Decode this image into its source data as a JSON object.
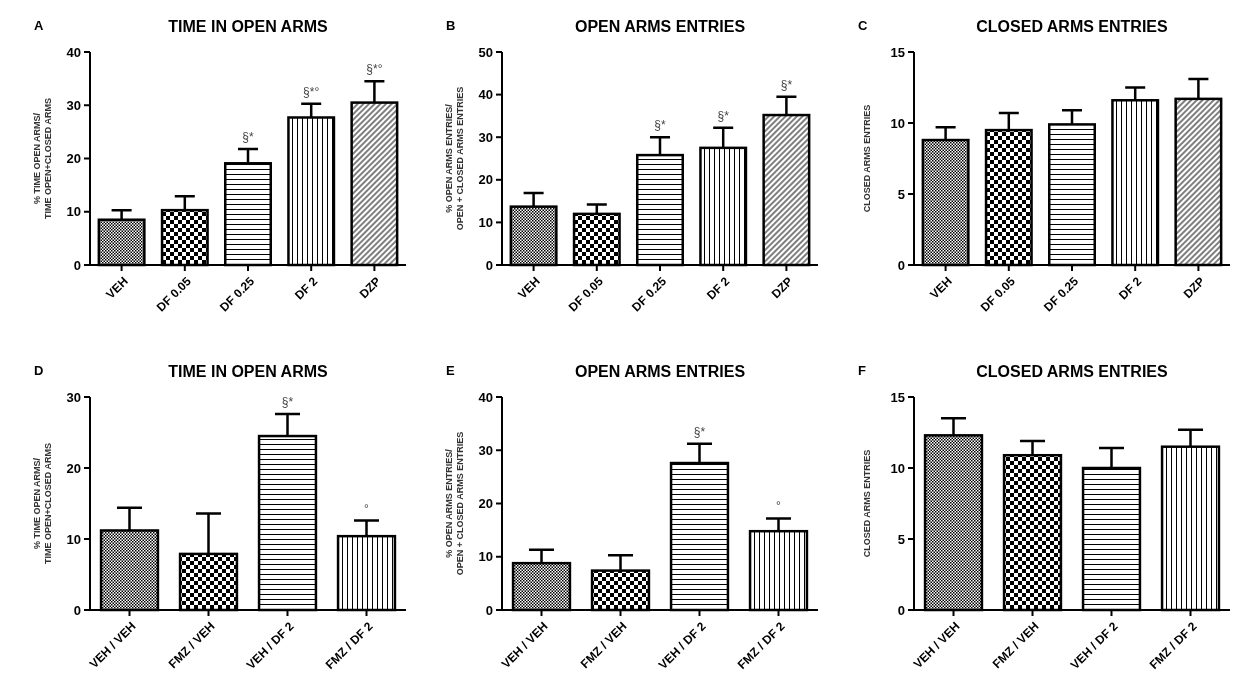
{
  "chart_data": [
    {
      "type": "bar",
      "title": "TIME IN OPEN ARMS",
      "ylabel": "% TIME OPEN ARMS/\nTIME OPEN+CLOSED ARMS",
      "categories": [
        "VEH",
        "DF 0.05",
        "DF 0.25",
        "DF 2",
        "DZP"
      ],
      "values": [
        8.5,
        10.3,
        19.1,
        27.7,
        30.5
      ],
      "errors": [
        [
          8.5,
          10.3
        ],
        [
          10.3,
          12.9
        ],
        [
          19.1,
          21.8
        ],
        [
          27.7,
          30.3
        ],
        [
          30.5,
          34.5
        ]
      ],
      "color": "#000000",
      "ylim": [
        0,
        40
      ],
      "yticks": [
        0,
        10,
        20,
        30,
        40
      ],
      "grid": false,
      "annotations": [
        "A",
        {
          "text": "§*",
          "x": "DF 0.25",
          "y": 21.8
        },
        {
          "text": "§*°",
          "x": "DF 2",
          "y": 30.3
        },
        {
          "text": "§*°",
          "x": "DZP",
          "y": 34.5
        }
      ]
    },
    {
      "type": "bar",
      "title": "OPEN ARMS ENTRIES",
      "ylabel": "% OPEN ARMS ENTRIES/\nOPEN + CLOSED ARMS ENTRIES",
      "categories": [
        "VEH",
        "DF 0.05",
        "DF 0.25",
        "DF 2",
        "DZP"
      ],
      "values": [
        13.7,
        12.0,
        25.8,
        27.5,
        35.2
      ],
      "errors": [
        [
          13.7,
          16.9
        ],
        [
          12.0,
          14.2
        ],
        [
          25.8,
          30.0
        ],
        [
          27.5,
          32.2
        ],
        [
          35.2,
          39.5
        ]
      ],
      "color": "#000000",
      "ylim": [
        0,
        50
      ],
      "yticks": [
        0,
        10,
        20,
        30,
        40,
        50
      ],
      "grid": false,
      "annotations": [
        "B",
        {
          "text": "§*",
          "x": "DF 0.25",
          "y": 30.0
        },
        {
          "text": "§*",
          "x": "DF 2",
          "y": 32.2
        },
        {
          "text": "§*",
          "x": "DZP",
          "y": 39.5
        }
      ]
    },
    {
      "type": "bar",
      "title": "CLOSED ARMS ENTRIES",
      "ylabel": "CLOSED ARMS ENTRIES",
      "categories": [
        "VEH",
        "DF 0.05",
        "DF 0.25",
        "DF 2",
        "DZP"
      ],
      "values": [
        8.8,
        9.5,
        9.9,
        11.6,
        11.7
      ],
      "errors": [
        [
          8.8,
          9.7
        ],
        [
          9.5,
          10.7
        ],
        [
          9.9,
          10.9
        ],
        [
          11.6,
          12.5
        ],
        [
          11.7,
          13.1
        ]
      ],
      "color": "#000000",
      "ylim": [
        0,
        15
      ],
      "yticks": [
        0,
        5,
        10,
        15
      ],
      "grid": false,
      "annotations": [
        "C"
      ]
    },
    {
      "type": "bar",
      "title": "TIME IN OPEN ARMS",
      "ylabel": "% TIME OPEN ARMS/\nTIME OPEN+CLOSED ARMS",
      "categories": [
        "VEH / VEH",
        "FMZ / VEH",
        "VEH / DF 2",
        "FMZ / DF 2"
      ],
      "values": [
        11.2,
        7.9,
        24.5,
        10.4
      ],
      "errors": [
        [
          11.2,
          14.4
        ],
        [
          7.9,
          13.6
        ],
        [
          24.5,
          27.6
        ],
        [
          10.4,
          12.6
        ]
      ],
      "color": "#000000",
      "ylim": [
        0,
        30
      ],
      "yticks": [
        0,
        10,
        20,
        30
      ],
      "grid": false,
      "annotations": [
        "D",
        {
          "text": "§*",
          "x": "VEH / DF 2",
          "y": 27.6
        },
        {
          "text": "°",
          "x": "FMZ / DF 2",
          "y": 12.6
        }
      ]
    },
    {
      "type": "bar",
      "title": "OPEN ARMS ENTRIES",
      "ylabel": "% OPEN ARMS ENTRIES/\nOPEN + CLOSED ARMS ENTRIES",
      "categories": [
        "VEH / VEH",
        "FMZ / VEH",
        "VEH / DF 2",
        "FMZ / DF 2"
      ],
      "values": [
        8.8,
        7.4,
        27.6,
        14.8
      ],
      "errors": [
        [
          8.8,
          11.3
        ],
        [
          7.4,
          10.3
        ],
        [
          27.6,
          31.2
        ],
        [
          14.8,
          17.2
        ]
      ],
      "color": "#000000",
      "ylim": [
        0,
        40
      ],
      "yticks": [
        0,
        10,
        20,
        30,
        40
      ],
      "grid": false,
      "annotations": [
        "E",
        {
          "text": "§*",
          "x": "VEH / DF 2",
          "y": 31.2
        },
        {
          "text": "°",
          "x": "FMZ / DF 2",
          "y": 17.2
        }
      ]
    },
    {
      "type": "bar",
      "title": "CLOSED ARMS ENTRIES",
      "ylabel": "CLOSED ARMS ENTRIES",
      "categories": [
        "VEH / VEH",
        "FMZ / VEH",
        "VEH / DF 2",
        "FMZ / DF 2"
      ],
      "values": [
        12.3,
        10.9,
        10.0,
        11.5
      ],
      "errors": [
        [
          12.3,
          13.5
        ],
        [
          10.9,
          11.9
        ],
        [
          10.0,
          11.4
        ],
        [
          11.5,
          12.7
        ]
      ],
      "color": "#000000",
      "ylim": [
        0,
        15
      ],
      "yticks": [
        0,
        5,
        10,
        15
      ],
      "grid": false,
      "annotations": [
        "F"
      ]
    }
  ]
}
